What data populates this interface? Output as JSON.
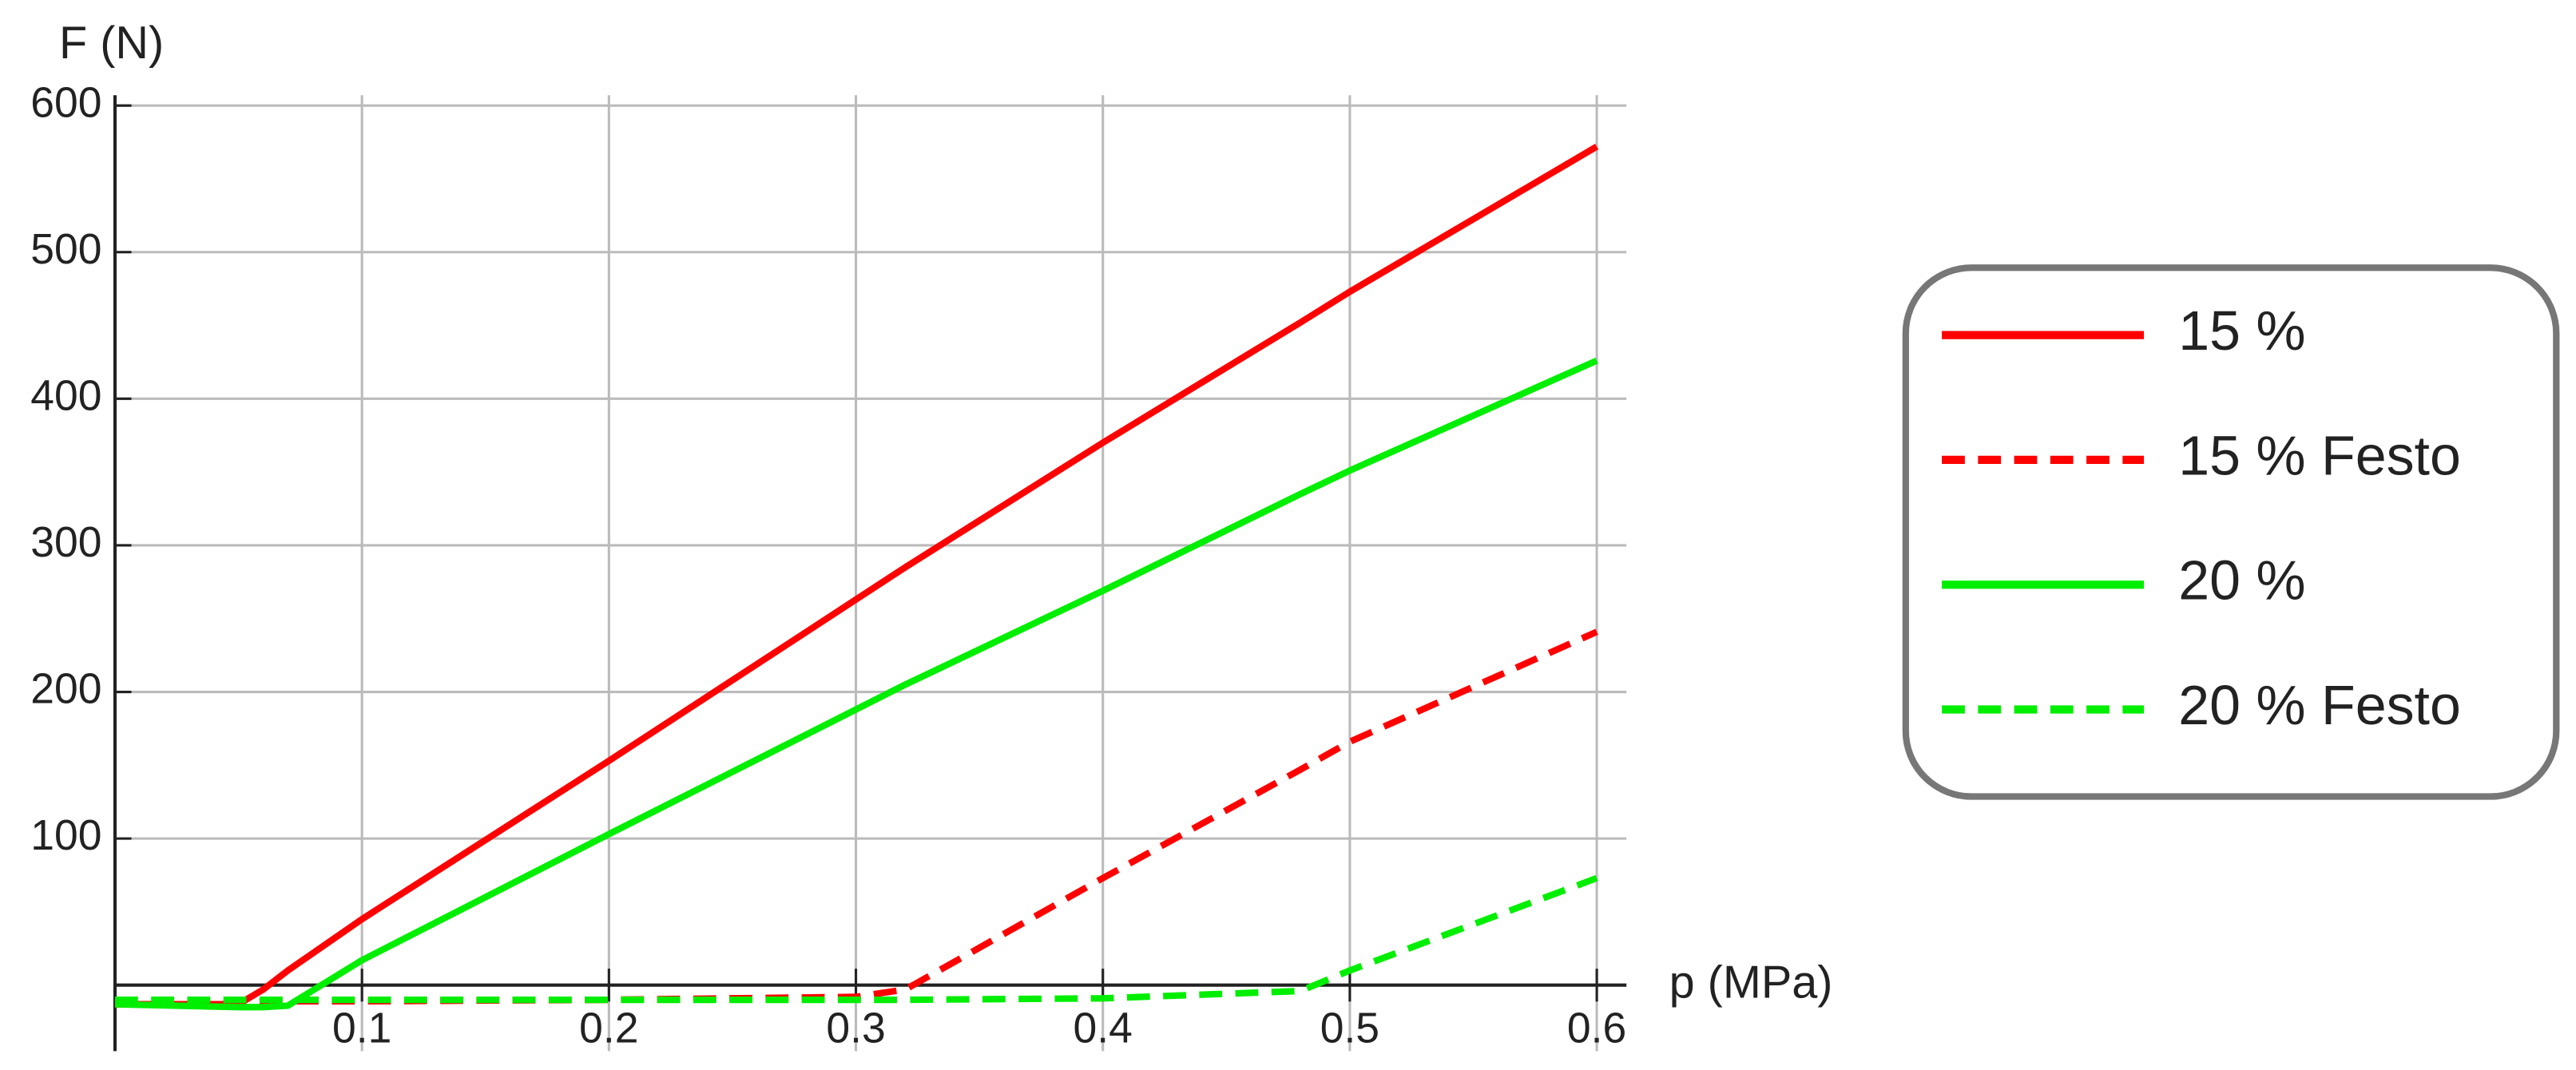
{
  "chart_data": {
    "type": "line",
    "x_label": "p (MPa)",
    "y_label": "F (N)",
    "x": [
      0,
      0.05,
      0.06,
      0.07,
      0.1,
      0.2,
      0.3,
      0.32,
      0.4,
      0.48,
      0.5,
      0.6
    ],
    "series": [
      {
        "name": "15 %",
        "color": "#ff0000",
        "dashed": false,
        "values": [
          -13,
          -13,
          -3,
          10,
          45,
          153,
          263,
          285,
          370,
          452,
          473,
          572
        ]
      },
      {
        "name": "15 % Festo",
        "color": "#ff0000",
        "dashed": true,
        "values": [
          -13,
          -12,
          -11,
          -11,
          -11,
          -10,
          -8,
          -3,
          73,
          147,
          166,
          241
        ]
      },
      {
        "name": "20 %",
        "color": "#00ee00",
        "dashed": false,
        "values": [
          -13,
          -15,
          -15,
          -14,
          17,
          103,
          188,
          205,
          269,
          335,
          351,
          426
        ]
      },
      {
        "name": "20 % Festo",
        "color": "#00ee00",
        "dashed": true,
        "values": [
          -10,
          -10,
          -10,
          -10,
          -10,
          -10,
          -10,
          -10,
          -9,
          -4,
          10,
          73
        ]
      }
    ],
    "xlim": [
      0,
      0.612
    ],
    "ylim": [
      -45,
      607
    ],
    "xticks": [
      0.1,
      0.2,
      0.3,
      0.4,
      0.5,
      0.6
    ],
    "yticks": [
      100,
      200,
      300,
      400,
      500,
      600
    ],
    "grid": true,
    "legend": "right"
  }
}
